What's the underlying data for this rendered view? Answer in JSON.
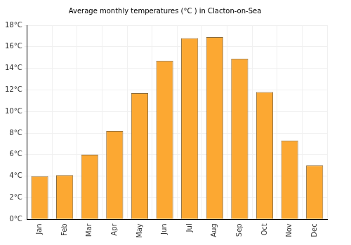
{
  "chart_data": {
    "type": "bar",
    "title": "Average monthly temperatures (°C ) in Clacton-on-Sea",
    "categories": [
      "Jan",
      "Feb",
      "Mar",
      "Apr",
      "May",
      "Jun",
      "Jul",
      "Aug",
      "Sep",
      "Oct",
      "Nov",
      "Dec"
    ],
    "values": [
      4.0,
      4.1,
      6.0,
      8.2,
      11.7,
      14.7,
      16.8,
      16.9,
      14.9,
      11.8,
      7.3,
      5.0
    ],
    "color": "#fca832",
    "ylim": [
      0,
      18
    ],
    "yticks": [
      {
        "value": 0,
        "label": "0°C"
      },
      {
        "value": 2,
        "label": "2°C"
      },
      {
        "value": 4,
        "label": "4°C"
      },
      {
        "value": 6,
        "label": "6°C"
      },
      {
        "value": 8,
        "label": "8°C"
      },
      {
        "value": 10,
        "label": "10°C"
      },
      {
        "value": 12,
        "label": "12°C"
      },
      {
        "value": 14,
        "label": "14°C"
      },
      {
        "value": 16,
        "label": "16°C"
      },
      {
        "value": 18,
        "label": "18°C"
      }
    ],
    "grid": true
  }
}
